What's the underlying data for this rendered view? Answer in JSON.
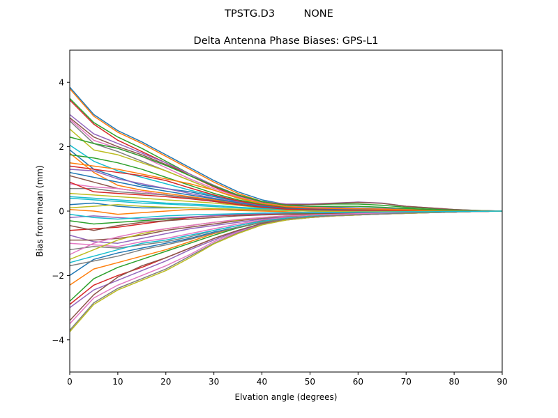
{
  "chart_data": {
    "type": "line",
    "suptitle": "TPSTG.D3         NONE",
    "title": "Delta Antenna Phase Biases: GPS-L1",
    "xlabel": "Elvation angle (degrees)",
    "ylabel": "Bias from mean (mm)",
    "xlim": [
      0,
      90
    ],
    "ylim": [
      -5,
      5
    ],
    "xticks": [
      0,
      10,
      20,
      30,
      40,
      50,
      60,
      70,
      80,
      90
    ],
    "yticks": [
      -4,
      -2,
      0,
      2,
      4
    ],
    "grid": false,
    "legend": "none",
    "x": [
      0,
      5,
      10,
      15,
      20,
      25,
      30,
      35,
      40,
      45,
      50,
      55,
      60,
      65,
      70,
      75,
      80,
      85,
      90
    ],
    "colors": [
      "#1f77b4",
      "#ff7f0e",
      "#2ca02c",
      "#d62728",
      "#9467bd",
      "#8c564b",
      "#e377c2",
      "#7f7f7f",
      "#bcbd22",
      "#17becf"
    ],
    "series": [
      {
        "values": [
          3.85,
          3.0,
          2.5,
          2.15,
          1.75,
          1.35,
          0.95,
          0.6,
          0.35,
          0.2,
          0.15,
          0.12,
          0.1,
          0.08,
          0.06,
          0.04,
          0.03,
          0.01,
          0
        ]
      },
      {
        "values": [
          3.8,
          2.95,
          2.45,
          2.1,
          1.7,
          1.3,
          0.9,
          0.55,
          0.3,
          0.15,
          0.1,
          0.08,
          0.07,
          0.06,
          0.05,
          0.03,
          0.02,
          0.01,
          0
        ]
      },
      {
        "values": [
          3.5,
          2.75,
          2.3,
          1.95,
          1.55,
          1.15,
          0.8,
          0.5,
          0.3,
          0.2,
          0.2,
          0.22,
          0.22,
          0.18,
          0.12,
          0.08,
          0.04,
          0.02,
          0
        ]
      },
      {
        "values": [
          3.45,
          2.7,
          2.2,
          1.85,
          1.5,
          1.1,
          0.75,
          0.45,
          0.25,
          0.15,
          0.12,
          0.1,
          0.08,
          0.07,
          0.05,
          0.03,
          0.02,
          0.01,
          0
        ]
      },
      {
        "values": [
          3.0,
          2.4,
          2.1,
          1.8,
          1.5,
          1.15,
          0.8,
          0.5,
          0.3,
          0.22,
          0.22,
          0.25,
          0.28,
          0.25,
          0.15,
          0.1,
          0.05,
          0.02,
          0
        ]
      },
      {
        "values": [
          2.9,
          2.3,
          2.0,
          1.75,
          1.45,
          1.1,
          0.78,
          0.48,
          0.28,
          0.2,
          0.2,
          0.24,
          0.27,
          0.24,
          0.15,
          0.1,
          0.05,
          0.02,
          0
        ]
      },
      {
        "values": [
          2.85,
          2.2,
          1.95,
          1.7,
          1.35,
          1.0,
          0.7,
          0.45,
          0.25,
          0.15,
          0.12,
          0.1,
          0.09,
          0.07,
          0.05,
          0.04,
          0.02,
          0.01,
          0
        ]
      },
      {
        "values": [
          2.8,
          2.1,
          1.85,
          1.55,
          1.25,
          0.95,
          0.65,
          0.4,
          0.22,
          0.12,
          0.1,
          0.09,
          0.08,
          0.06,
          0.05,
          0.03,
          0.02,
          0.01,
          0
        ]
      },
      {
        "values": [
          2.55,
          1.9,
          1.75,
          1.5,
          1.25,
          0.95,
          0.65,
          0.4,
          0.2,
          0.12,
          0.1,
          0.08,
          0.06,
          0.05,
          0.04,
          0.03,
          0.02,
          0.01,
          0
        ]
      },
      {
        "values": [
          2.05,
          1.55,
          1.25,
          1.05,
          0.85,
          0.65,
          0.48,
          0.3,
          0.18,
          0.1,
          0.08,
          0.07,
          0.06,
          0.05,
          0.04,
          0.03,
          0.02,
          0.01,
          0
        ]
      },
      {
        "values": [
          1.9,
          1.3,
          1.05,
          0.8,
          0.7,
          0.6,
          0.45,
          0.3,
          0.18,
          0.1,
          0.08,
          0.06,
          0.05,
          0.04,
          0.03,
          0.02,
          0.01,
          0.005,
          0
        ]
      },
      {
        "values": [
          1.8,
          1.2,
          0.8,
          0.65,
          0.55,
          0.45,
          0.35,
          0.25,
          0.15,
          0.08,
          0.06,
          0.05,
          0.04,
          0.03,
          0.02,
          0.02,
          0.01,
          0.005,
          0
        ]
      },
      {
        "values": [
          1.75,
          1.65,
          1.5,
          1.3,
          1.05,
          0.8,
          0.55,
          0.35,
          0.2,
          0.12,
          0.1,
          0.08,
          0.06,
          0.05,
          0.04,
          0.03,
          0.02,
          0.01,
          0
        ]
      },
      {
        "values": [
          1.4,
          1.3,
          1.2,
          1.1,
          0.95,
          0.72,
          0.5,
          0.32,
          0.18,
          0.1,
          0.08,
          0.06,
          0.05,
          0.04,
          0.03,
          0.02,
          0.01,
          0.005,
          0
        ]
      },
      {
        "values": [
          1.3,
          1.25,
          1.0,
          0.85,
          0.7,
          0.55,
          0.4,
          0.28,
          0.16,
          0.08,
          0.06,
          0.05,
          0.04,
          0.03,
          0.02,
          0.02,
          0.01,
          0.005,
          0
        ]
      },
      {
        "values": [
          1.1,
          0.9,
          0.7,
          0.6,
          0.5,
          0.42,
          0.32,
          0.22,
          0.12,
          0.06,
          0.04,
          0.03,
          0.03,
          0.02,
          0.02,
          0.01,
          0.01,
          0.005,
          0
        ]
      },
      {
        "values": [
          0.85,
          0.75,
          0.7,
          0.6,
          0.5,
          0.4,
          0.3,
          0.2,
          0.1,
          0.05,
          0.03,
          0.02,
          0.02,
          0.02,
          0.01,
          0.01,
          0.01,
          0.005,
          0
        ]
      },
      {
        "values": [
          0.7,
          0.7,
          0.6,
          0.55,
          0.5,
          0.4,
          0.3,
          0.2,
          0.12,
          0.06,
          0.04,
          0.03,
          0.02,
          0.02,
          0.01,
          0.01,
          0.01,
          0.005,
          0
        ]
      },
      {
        "values": [
          0.55,
          0.5,
          0.45,
          0.4,
          0.35,
          0.3,
          0.25,
          0.18,
          0.1,
          0.05,
          0.03,
          0.02,
          0.02,
          0.01,
          0.01,
          0.01,
          0.005,
          0.002,
          0
        ]
      },
      {
        "values": [
          0.45,
          0.4,
          0.35,
          0.3,
          0.25,
          0.22,
          0.18,
          0.12,
          0.08,
          0.04,
          0.02,
          0.01,
          0.01,
          0.01,
          0.01,
          0.005,
          0.005,
          0.002,
          0
        ]
      },
      {
        "values": [
          0.2,
          0.25,
          0.15,
          0.1,
          0.1,
          0.1,
          0.08,
          0.05,
          0.03,
          0.02,
          0.0,
          -0.02,
          -0.03,
          -0.02,
          -0.01,
          -0.01,
          0.0,
          0.0,
          0
        ]
      },
      {
        "values": [
          0.05,
          0.0,
          -0.1,
          -0.05,
          0.0,
          0.05,
          0.05,
          0.02,
          0.0,
          -0.02,
          -0.05,
          -0.06,
          -0.05,
          -0.04,
          -0.03,
          -0.02,
          -0.01,
          0.0,
          0
        ]
      },
      {
        "values": [
          -0.3,
          -0.4,
          -0.35,
          -0.3,
          -0.25,
          -0.2,
          -0.15,
          -0.12,
          -0.1,
          -0.08,
          -0.08,
          -0.07,
          -0.06,
          -0.05,
          -0.04,
          -0.03,
          -0.02,
          -0.01,
          0
        ]
      },
      {
        "values": [
          -0.6,
          -0.55,
          -0.5,
          -0.4,
          -0.3,
          -0.2,
          -0.15,
          -0.12,
          -0.1,
          -0.1,
          -0.1,
          -0.1,
          -0.08,
          -0.06,
          -0.04,
          -0.03,
          -0.02,
          -0.01,
          0
        ]
      },
      {
        "values": [
          -0.75,
          -0.95,
          -1.0,
          -0.85,
          -0.7,
          -0.55,
          -0.45,
          -0.35,
          -0.25,
          -0.18,
          -0.14,
          -0.12,
          -0.1,
          -0.08,
          -0.06,
          -0.04,
          -0.03,
          -0.01,
          0
        ]
      },
      {
        "values": [
          -0.9,
          -0.9,
          -0.85,
          -0.75,
          -0.6,
          -0.5,
          -0.4,
          -0.3,
          -0.22,
          -0.16,
          -0.13,
          -0.11,
          -0.09,
          -0.07,
          -0.05,
          -0.04,
          -0.02,
          -0.01,
          0
        ]
      },
      {
        "values": [
          -1.0,
          -1.05,
          -1.1,
          -0.95,
          -0.85,
          -0.7,
          -0.55,
          -0.4,
          -0.28,
          -0.2,
          -0.15,
          -0.12,
          -0.1,
          -0.08,
          -0.06,
          -0.04,
          -0.03,
          -0.01,
          0
        ]
      },
      {
        "values": [
          -1.2,
          -1.1,
          -1.15,
          -1.05,
          -0.95,
          -0.8,
          -0.6,
          -0.45,
          -0.3,
          -0.22,
          -0.16,
          -0.13,
          -0.1,
          -0.08,
          -0.06,
          -0.04,
          -0.03,
          -0.01,
          0
        ]
      },
      {
        "values": [
          -1.5,
          -1.2,
          -0.9,
          -0.7,
          -0.55,
          -0.45,
          -0.35,
          -0.28,
          -0.2,
          -0.15,
          -0.12,
          -0.1,
          -0.08,
          -0.06,
          -0.05,
          -0.03,
          -0.02,
          -0.01,
          0
        ]
      },
      {
        "values": [
          -1.6,
          -1.4,
          -1.2,
          -1.0,
          -0.9,
          -0.75,
          -0.6,
          -0.45,
          -0.32,
          -0.22,
          -0.16,
          -0.13,
          -0.1,
          -0.08,
          -0.06,
          -0.04,
          -0.03,
          -0.01,
          0
        ]
      },
      {
        "values": [
          -2.0,
          -1.5,
          -1.3,
          -1.15,
          -1.0,
          -0.85,
          -0.65,
          -0.5,
          -0.35,
          -0.25,
          -0.18,
          -0.14,
          -0.11,
          -0.09,
          -0.06,
          -0.04,
          -0.03,
          -0.01,
          0
        ]
      },
      {
        "values": [
          -2.3,
          -1.8,
          -1.6,
          -1.4,
          -1.2,
          -0.95,
          -0.7,
          -0.5,
          -0.35,
          -0.25,
          -0.18,
          -0.14,
          -0.11,
          -0.09,
          -0.06,
          -0.04,
          -0.03,
          -0.01,
          0
        ]
      },
      {
        "values": [
          -2.8,
          -2.1,
          -1.75,
          -1.5,
          -1.25,
          -1.0,
          -0.75,
          -0.52,
          -0.35,
          -0.25,
          -0.18,
          -0.14,
          -0.11,
          -0.09,
          -0.06,
          -0.04,
          -0.03,
          -0.01,
          0
        ]
      },
      {
        "values": [
          -2.9,
          -2.3,
          -2.0,
          -1.75,
          -1.45,
          -1.15,
          -0.85,
          -0.6,
          -0.4,
          -0.27,
          -0.2,
          -0.15,
          -0.12,
          -0.09,
          -0.07,
          -0.05,
          -0.03,
          -0.01,
          0
        ]
      },
      {
        "values": [
          -3.0,
          -2.45,
          -2.15,
          -1.85,
          -1.55,
          -1.2,
          -0.9,
          -0.62,
          -0.4,
          -0.27,
          -0.2,
          -0.15,
          -0.12,
          -0.09,
          -0.07,
          -0.05,
          -0.03,
          -0.01,
          0
        ]
      },
      {
        "values": [
          -3.4,
          -2.6,
          -2.05,
          -1.7,
          -1.45,
          -1.15,
          -0.85,
          -0.6,
          -0.38,
          -0.25,
          -0.18,
          -0.14,
          -0.11,
          -0.09,
          -0.06,
          -0.04,
          -0.03,
          -0.01,
          0
        ]
      },
      {
        "values": [
          -3.5,
          -2.7,
          -2.3,
          -2.0,
          -1.7,
          -1.35,
          -0.95,
          -0.65,
          -0.42,
          -0.28,
          -0.2,
          -0.15,
          -0.12,
          -0.09,
          -0.07,
          -0.05,
          -0.03,
          -0.01,
          0
        ]
      },
      {
        "values": [
          -3.7,
          -2.85,
          -2.4,
          -2.1,
          -1.8,
          -1.4,
          -1.0,
          -0.68,
          -0.42,
          -0.28,
          -0.2,
          -0.15,
          -0.12,
          -0.09,
          -0.07,
          -0.05,
          -0.03,
          -0.01,
          0
        ]
      },
      {
        "values": [
          -3.75,
          -2.9,
          -2.45,
          -2.15,
          -1.85,
          -1.45,
          -1.02,
          -0.7,
          -0.43,
          -0.28,
          -0.2,
          -0.15,
          -0.12,
          -0.09,
          -0.07,
          -0.05,
          -0.03,
          -0.01,
          0
        ]
      },
      {
        "values": [
          0.4,
          0.35,
          0.3,
          0.25,
          0.22,
          0.18,
          0.14,
          0.1,
          0.06,
          0.03,
          0.02,
          0.02,
          0.02,
          0.01,
          0.01,
          0.01,
          0.005,
          0.002,
          0
        ]
      },
      {
        "values": [
          1.2,
          1.05,
          0.9,
          0.75,
          0.62,
          0.5,
          0.38,
          0.26,
          0.15,
          0.08,
          0.06,
          0.05,
          0.04,
          0.03,
          0.02,
          0.02,
          0.01,
          0.005,
          0
        ]
      },
      {
        "values": [
          1.5,
          1.4,
          1.3,
          1.15,
          1.0,
          0.85,
          0.65,
          0.42,
          0.24,
          0.14,
          0.1,
          0.08,
          0.07,
          0.06,
          0.04,
          0.03,
          0.02,
          0.01,
          0
        ]
      },
      {
        "values": [
          2.3,
          2.1,
          1.95,
          1.7,
          1.42,
          1.1,
          0.78,
          0.5,
          0.3,
          0.18,
          0.15,
          0.15,
          0.15,
          0.12,
          0.08,
          0.05,
          0.03,
          0.01,
          0
        ]
      },
      {
        "values": [
          0.9,
          0.6,
          0.55,
          0.5,
          0.45,
          0.38,
          0.3,
          0.2,
          0.12,
          0.06,
          0.04,
          0.03,
          0.02,
          0.02,
          0.01,
          0.01,
          0.005,
          0.002,
          0
        ]
      },
      {
        "values": [
          -0.2,
          -0.15,
          -0.2,
          -0.25,
          -0.22,
          -0.18,
          -0.14,
          -0.1,
          -0.08,
          -0.06,
          -0.05,
          -0.05,
          -0.04,
          -0.04,
          -0.03,
          -0.02,
          -0.01,
          -0.005,
          0
        ]
      },
      {
        "values": [
          -0.45,
          -0.6,
          -0.45,
          -0.35,
          -0.3,
          -0.25,
          -0.2,
          -0.15,
          -0.12,
          -0.1,
          -0.09,
          -0.08,
          -0.07,
          -0.05,
          -0.04,
          -0.03,
          -0.02,
          -0.01,
          0
        ]
      },
      {
        "values": [
          -1.35,
          -1.0,
          -0.8,
          -0.65,
          -0.55,
          -0.45,
          -0.35,
          -0.26,
          -0.2,
          -0.15,
          -0.12,
          -0.1,
          -0.08,
          -0.06,
          -0.05,
          -0.03,
          -0.02,
          -0.01,
          0
        ]
      },
      {
        "values": [
          -1.7,
          -1.55,
          -1.4,
          -1.2,
          -1.05,
          -0.88,
          -0.68,
          -0.5,
          -0.35,
          -0.25,
          -0.18,
          -0.14,
          -0.11,
          -0.09,
          -0.06,
          -0.04,
          -0.03,
          -0.01,
          0
        ]
      },
      {
        "values": [
          0.1,
          0.15,
          0.2,
          0.15,
          0.12,
          0.1,
          0.08,
          0.06,
          0.04,
          0.02,
          0.0,
          -0.01,
          -0.01,
          -0.01,
          -0.01,
          0.0,
          0.0,
          0.0,
          0
        ]
      },
      {
        "values": [
          -0.1,
          -0.2,
          -0.25,
          -0.2,
          -0.15,
          -0.12,
          -0.1,
          -0.08,
          -0.06,
          -0.05,
          -0.04,
          -0.04,
          -0.03,
          -0.03,
          -0.02,
          -0.02,
          -0.01,
          -0.005,
          0
        ]
      }
    ]
  }
}
